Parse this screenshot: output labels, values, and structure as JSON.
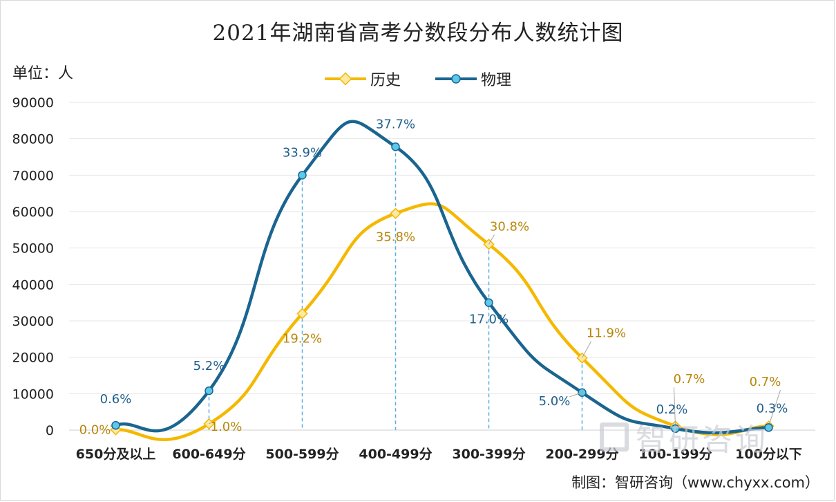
{
  "title": "2021年湖南省高考分数段分布人数统计图",
  "unit_label": "单位：人",
  "source": "制图：智研咨询（www.chyxx.com）",
  "watermark": "智研咨询",
  "colors": {
    "history": "#f5b800",
    "physics": "#1a6590",
    "grid": "#e6e6e6",
    "dash": "#5aaee0"
  },
  "chart_data": {
    "type": "line",
    "categories": [
      "650分及以上",
      "600-649分",
      "500-599分",
      "400-499分",
      "300-399分",
      "200-299分",
      "100-199分",
      "100分以下"
    ],
    "ylim": [
      0,
      90000
    ],
    "yticks": [
      0,
      10000,
      20000,
      30000,
      40000,
      50000,
      60000,
      70000,
      80000,
      90000
    ],
    "grid": true,
    "legend_position": "top-center",
    "series": [
      {
        "name": "历史",
        "key": "history",
        "values": [
          100,
          1700,
          32000,
          59500,
          51000,
          19800,
          1100,
          1100
        ],
        "labels": [
          "0.0%",
          "1.0%",
          "19.2%",
          "35.8%",
          "30.8%",
          "11.9%",
          "0.7%",
          "0.7%"
        ]
      },
      {
        "name": "物理",
        "key": "physics",
        "values": [
          1300,
          10800,
          70000,
          77800,
          35000,
          10300,
          400,
          700
        ],
        "labels": [
          "0.6%",
          "5.2%",
          "33.9%",
          "37.7%",
          "17.0%",
          "5.0%",
          "0.2%",
          "0.3%"
        ]
      }
    ]
  }
}
